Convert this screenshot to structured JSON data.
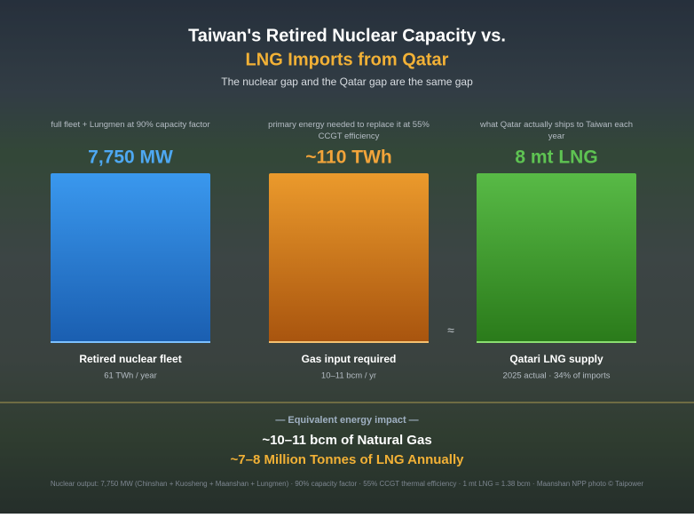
{
  "header": {
    "title_line1": "Taiwan's Retired Nuclear Capacity vs.",
    "title_line2": "LNG Imports from Qatar",
    "subtitle": "The nuclear gap and the Qatar gap are the same gap"
  },
  "columns": [
    {
      "caption": "full fleet + Lungmen at 90% capacity factor",
      "value": "7,750 MW",
      "label": "Retired nuclear fleet",
      "sublabel": "61 TWh / year"
    },
    {
      "caption": "primary energy needed to replace it at 55% CCGT efficiency",
      "value": "~110 TWh",
      "label": "Gas input required",
      "sublabel": "10–11 bcm / yr"
    },
    {
      "caption": "what Qatar actually ships to Taiwan each year",
      "value": "8 mt LNG",
      "label": "Qatari LNG supply",
      "sublabel": "2025 actual · 34% of imports"
    }
  ],
  "connector": "≈",
  "summary": {
    "heading": "— Equivalent energy impact —",
    "line1": "~10–11 bcm of Natural Gas",
    "line2": "~7–8 Million Tonnes of LNG Annually"
  },
  "footnote": "Nuclear output: 7,750 MW (Chinshan + Kuosheng + Maanshan + Lungmen) · 90% capacity factor · 55% CCGT thermal efficiency · 1 mt LNG = 1.38 bcm · Maanshan NPP photo © Taipower"
}
